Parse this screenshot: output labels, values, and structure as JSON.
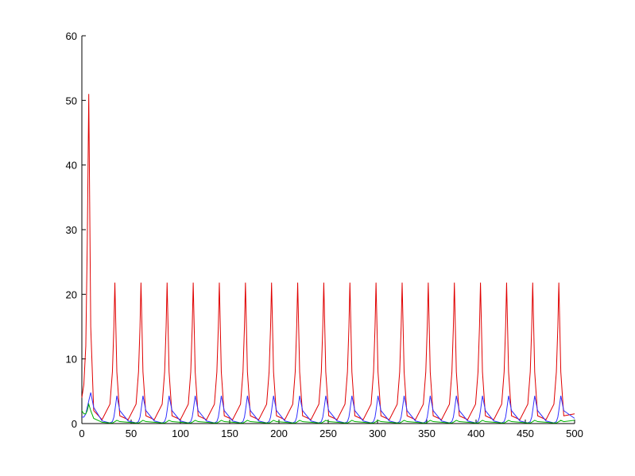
{
  "chart_data": {
    "type": "line",
    "xlim": [
      0,
      500
    ],
    "xticks": [
      0,
      50,
      100,
      150,
      200,
      250,
      300,
      350,
      400,
      450,
      500
    ],
    "ylim": [
      0,
      60
    ],
    "yticks": [
      0,
      10,
      20,
      30,
      40,
      50,
      60
    ],
    "x": [
      0,
      2,
      4,
      5.5,
      7,
      9,
      12,
      20.5,
      28.5,
      31,
      32.5,
      33.5,
      35.5,
      38.5,
      47,
      55,
      57.5,
      59,
      60,
      62,
      65,
      73.5,
      81.5,
      84,
      85.5,
      86.5,
      88.5,
      91.5,
      100,
      108,
      110.5,
      112,
      113,
      115,
      118,
      126.5,
      134.5,
      137,
      138.5,
      139.5,
      141.5,
      144.5,
      153,
      161,
      163.5,
      165,
      166,
      168,
      171,
      179.5,
      187.5,
      190,
      191.5,
      192.5,
      194.5,
      197.5,
      206,
      214,
      216.5,
      218,
      219,
      221,
      224,
      232.5,
      240.5,
      243,
      244.5,
      245.5,
      247.5,
      250.5,
      259,
      267,
      269.5,
      271,
      272,
      274,
      277,
      285.5,
      293.5,
      296,
      297.5,
      298.5,
      300.5,
      303.5,
      312,
      320,
      322.5,
      324,
      325,
      327,
      330,
      338.5,
      346.5,
      349,
      350.5,
      351.5,
      353.5,
      356.5,
      365,
      373,
      375.5,
      377,
      378,
      380,
      383,
      391.5,
      399.5,
      402,
      403.5,
      404.5,
      406.5,
      409.5,
      418,
      426,
      428.5,
      430,
      431,
      433,
      436,
      444.5,
      452.5,
      455,
      456.5,
      457.5,
      459.5,
      462.5,
      471,
      479,
      481.5,
      483,
      484,
      486,
      489,
      500
    ],
    "series": [
      {
        "color": "#e00000",
        "values": [
          4,
          6,
          12,
          28,
          51,
          15,
          2,
          0.6,
          3,
          8,
          15,
          21.8,
          8,
          1.2,
          0.6,
          3,
          8,
          15,
          21.8,
          8,
          1.2,
          0.6,
          3,
          8,
          15,
          21.8,
          8,
          1.2,
          0.6,
          3,
          8,
          15,
          21.8,
          8,
          1.2,
          0.6,
          3,
          8,
          15,
          21.8,
          8,
          1.2,
          0.6,
          3,
          8,
          15,
          21.8,
          8,
          1.2,
          0.6,
          3,
          8,
          15,
          21.8,
          8,
          1.2,
          0.6,
          3,
          8,
          15,
          21.8,
          8,
          1.2,
          0.6,
          3,
          8,
          15,
          21.8,
          8,
          1.2,
          0.6,
          3,
          8,
          15,
          21.8,
          8,
          1.2,
          0.6,
          3,
          8,
          15,
          21.8,
          8,
          1.2,
          0.6,
          3,
          8,
          15,
          21.8,
          8,
          1.2,
          0.6,
          3,
          8,
          15,
          21.8,
          8,
          1.2,
          0.6,
          3,
          8,
          15,
          21.8,
          8,
          1.2,
          0.6,
          3,
          8,
          15,
          21.8,
          8,
          1.2,
          0.6,
          3,
          8,
          15,
          21.8,
          8,
          1.2,
          0.6,
          3,
          8,
          15,
          21.8,
          8,
          1.2,
          0.6,
          3,
          8,
          15,
          21.8,
          8,
          1.2,
          1.5
        ]
      },
      {
        "color": "#3030ff",
        "values": [
          1,
          1,
          1.5,
          2.5,
          3.5,
          4.8,
          2.5,
          0.4,
          0.1,
          0.3,
          1,
          2,
          4.3,
          2,
          0.4,
          0.1,
          0.3,
          1,
          2,
          4.3,
          2,
          0.4,
          0.1,
          0.3,
          1,
          2,
          4.3,
          2,
          0.4,
          0.1,
          0.3,
          1,
          2,
          4.3,
          2,
          0.4,
          0.1,
          0.3,
          1,
          2,
          4.3,
          2,
          0.4,
          0.1,
          0.3,
          1,
          2,
          4.3,
          2,
          0.4,
          0.1,
          0.3,
          1,
          2,
          4.3,
          2,
          0.4,
          0.1,
          0.3,
          1,
          2,
          4.3,
          2,
          0.4,
          0.1,
          0.3,
          1,
          2,
          4.3,
          2,
          0.4,
          0.1,
          0.3,
          1,
          2,
          4.3,
          2,
          0.4,
          0.1,
          0.3,
          1,
          2,
          4.3,
          2,
          0.4,
          0.1,
          0.3,
          1,
          2,
          4.3,
          2,
          0.4,
          0.1,
          0.3,
          1,
          2,
          4.3,
          2,
          0.4,
          0.1,
          0.3,
          1,
          2,
          4.3,
          2,
          0.4,
          0.1,
          0.3,
          1,
          2,
          4.3,
          2,
          0.4,
          0.1,
          0.3,
          1,
          2,
          4.3,
          2,
          0.4,
          0.1,
          0.3,
          1,
          2,
          4.3,
          2,
          0.4,
          0.1,
          0.3,
          1,
          2,
          4.3,
          2,
          0.8
        ]
      },
      {
        "color": "#00b000",
        "values": [
          2,
          1.5,
          1.5,
          2,
          3,
          2,
          0.8,
          0.2,
          0.1,
          0.1,
          0.2,
          0.3,
          0.5,
          0.3,
          0.2,
          0.1,
          0.1,
          0.2,
          0.3,
          0.5,
          0.3,
          0.2,
          0.1,
          0.1,
          0.2,
          0.3,
          0.5,
          0.3,
          0.2,
          0.1,
          0.1,
          0.2,
          0.3,
          0.5,
          0.3,
          0.2,
          0.1,
          0.1,
          0.2,
          0.3,
          0.5,
          0.3,
          0.2,
          0.1,
          0.1,
          0.2,
          0.3,
          0.5,
          0.3,
          0.2,
          0.1,
          0.1,
          0.2,
          0.3,
          0.5,
          0.3,
          0.2,
          0.1,
          0.1,
          0.2,
          0.3,
          0.5,
          0.3,
          0.2,
          0.1,
          0.1,
          0.2,
          0.3,
          0.5,
          0.3,
          0.2,
          0.1,
          0.1,
          0.2,
          0.3,
          0.5,
          0.3,
          0.2,
          0.1,
          0.1,
          0.2,
          0.3,
          0.5,
          0.3,
          0.2,
          0.1,
          0.1,
          0.2,
          0.3,
          0.5,
          0.3,
          0.2,
          0.1,
          0.1,
          0.2,
          0.3,
          0.5,
          0.3,
          0.2,
          0.1,
          0.1,
          0.2,
          0.3,
          0.5,
          0.3,
          0.2,
          0.1,
          0.1,
          0.2,
          0.3,
          0.5,
          0.3,
          0.2,
          0.1,
          0.1,
          0.2,
          0.3,
          0.5,
          0.3,
          0.2,
          0.1,
          0.1,
          0.2,
          0.3,
          0.5,
          0.3,
          0.2,
          0.1,
          0.1,
          0.2,
          0.3,
          0.5,
          0.3,
          0.5
        ]
      }
    ]
  }
}
